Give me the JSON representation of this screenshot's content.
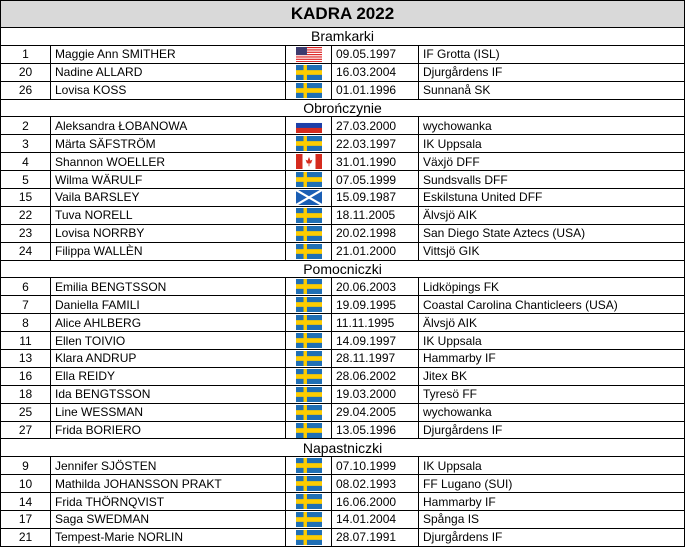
{
  "title": "KADRA 2022",
  "sections": [
    {
      "name": "Bramkarki",
      "players": [
        [
          "1",
          "Maggie Ann SMITHER",
          "09.05.1997",
          "IF Grotta (ISL)"
        ],
        [
          "20",
          "Nadine ALLARD",
          "16.03.2004",
          "Djurgårdens IF"
        ],
        [
          "26",
          "Lovisa KOSS",
          "01.01.1996",
          "Sunnanå SK"
        ]
      ]
    },
    {
      "name": "Obrończynie",
      "players": [
        [
          "2",
          "Aleksandra ŁOBANOWA",
          "27.03.2000",
          "wychowanka"
        ],
        [
          "3",
          "Märta SÄFSTRÖM",
          "22.03.1997",
          "IK Uppsala"
        ],
        [
          "4",
          "Shannon WOELLER",
          "31.01.1990",
          "Växjö DFF"
        ],
        [
          "5",
          "Wilma WÄRULF",
          "07.05.1999",
          "Sundsvalls DFF"
        ],
        [
          "15",
          "Vaila BARSLEY",
          "15.09.1987",
          "Eskilstuna United DFF"
        ],
        [
          "22",
          "Tuva NORELL",
          "18.11.2005",
          "Älvsjö AIK"
        ],
        [
          "23",
          "Lovisa NORRBY",
          "20.02.1998",
          "San Diego State Aztecs (USA)"
        ],
        [
          "24",
          "Filippa WALLÈN",
          "21.01.2000",
          "Vittsjö GIK"
        ]
      ]
    },
    {
      "name": "Pomocniczki",
      "players": [
        [
          "6",
          "Emilia BENGTSSON",
          "20.06.2003",
          "Lidköpings FK"
        ],
        [
          "7",
          "Daniella FAMILI",
          "19.09.1995",
          "Coastal Carolina Chanticleers (USA)"
        ],
        [
          "8",
          "Alice AHLBERG",
          "11.11.1995",
          "Älvsjö AIK"
        ],
        [
          "11",
          "Ellen TOIVIO",
          "14.09.1997",
          "IK Uppsala"
        ],
        [
          "13",
          "Klara ANDRUP",
          "28.11.1997",
          "Hammarby IF"
        ],
        [
          "16",
          "Ella REIDY",
          "28.06.2002",
          "Jitex BK"
        ],
        [
          "18",
          "Ida BENGTSSON",
          "19.03.2000",
          "Tyresö FF"
        ],
        [
          "25",
          "Line WESSMAN",
          "29.04.2005",
          "wychowanka"
        ],
        [
          "27",
          "Frida BORIERO",
          "13.05.1996",
          "Djurgårdens IF"
        ]
      ]
    },
    {
      "name": "Napastniczki",
      "players": [
        [
          "9",
          "Jennifer SJÖSTEN",
          "07.10.1999",
          "IK Uppsala"
        ],
        [
          "10",
          "Mathilda JOHANSSON PRAKT",
          "08.02.1993",
          "FF Lugano (SUI)"
        ],
        [
          "14",
          "Frida THÖRNQVIST",
          "16.06.2000",
          "Hammarby IF"
        ],
        [
          "17",
          "Saga SWEDMAN",
          "14.01.2004",
          "Spånga IS"
        ],
        [
          "21",
          "Tempest-Marie NORLIN",
          "28.07.1991",
          "Djurgårdens IF"
        ]
      ]
    }
  ]
}
